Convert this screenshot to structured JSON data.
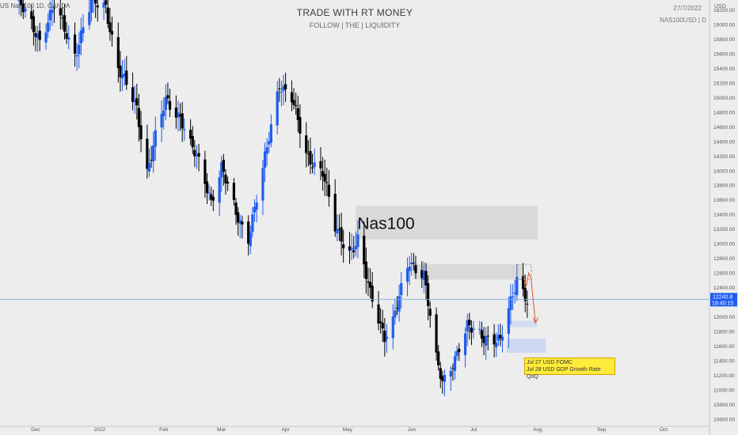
{
  "header": {
    "title": "TRADE WITH RT MONEY",
    "subtitle": "FOLLOW  | THE |  LIQUIDITY",
    "date": "27/7/2022",
    "symbol": "NAS100USD  |  D",
    "currency": "USD",
    "legend": "US Nas 100 1D, OANDA"
  },
  "price_tag": {
    "value": "12240.8",
    "countdown": "19:40:15"
  },
  "zone_label": "Nas100",
  "events": [
    "Jul 27  USD  FOMC",
    "Jul 28  USD GDP Growth Rate QoQ"
  ],
  "colors": {
    "bull": "#1e5cf0",
    "bear": "#000000",
    "zone": "#d6d6d6",
    "blue_zone": "#c9d6f2",
    "price_line": "#7fb2e5",
    "tag": "#1e5cf0",
    "arrow": "#e2552c"
  },
  "chart_data": {
    "type": "candlestick",
    "ylim": [
      10515,
      16290
    ],
    "y_ticks": [
      10600,
      10800,
      11000,
      11200,
      11400,
      11600,
      11800,
      12000,
      12200,
      12400,
      12600,
      12800,
      13000,
      13200,
      13400,
      13600,
      13800,
      14000,
      14200,
      14400,
      14600,
      14800,
      15000,
      15200,
      15400,
      15600,
      15800,
      16000,
      16200
    ],
    "x_labels": [
      {
        "label": "Dec",
        "date": "2021-12-01"
      },
      {
        "label": "2022",
        "date": "2022-01-01"
      },
      {
        "label": "Feb",
        "date": "2022-02-01"
      },
      {
        "label": "Mar",
        "date": "2022-03-01"
      },
      {
        "label": "Apr",
        "date": "2022-04-01"
      },
      {
        "label": "May",
        "date": "2022-05-01"
      },
      {
        "label": "Jun",
        "date": "2022-06-01"
      },
      {
        "label": "Jul",
        "date": "2022-07-01"
      },
      {
        "label": "Aug",
        "date": "2022-08-01"
      },
      {
        "label": "Sep",
        "date": "2022-09-01"
      },
      {
        "label": "Oct",
        "date": "2022-10-01"
      }
    ],
    "path": [
      [
        "2021-11-23",
        16290
      ],
      [
        "2021-12-03",
        15800
      ],
      [
        "2021-12-10",
        16250
      ],
      [
        "2021-12-20",
        15600
      ],
      [
        "2021-12-28",
        16300
      ],
      [
        "2022-01-04",
        16250
      ],
      [
        "2022-01-10",
        15400
      ],
      [
        "2022-01-19",
        14850
      ],
      [
        "2022-01-24",
        14000
      ],
      [
        "2022-01-28",
        14450
      ],
      [
        "2022-02-02",
        14950
      ],
      [
        "2022-02-09",
        14750
      ],
      [
        "2022-02-14",
        14350
      ],
      [
        "2022-02-18",
        14100
      ],
      [
        "2022-02-24",
        13600
      ],
      [
        "2022-03-01",
        14050
      ],
      [
        "2022-03-08",
        13400
      ],
      [
        "2022-03-14",
        13100
      ],
      [
        "2022-03-21",
        14000
      ],
      [
        "2022-03-29",
        15200
      ],
      [
        "2022-04-04",
        15000
      ],
      [
        "2022-04-11",
        14200
      ],
      [
        "2022-04-19",
        14000
      ],
      [
        "2022-04-25",
        13200
      ],
      [
        "2022-05-02",
        12900
      ],
      [
        "2022-05-06",
        13050
      ],
      [
        "2022-05-12",
        12300
      ],
      [
        "2022-05-19",
        11750
      ],
      [
        "2022-05-23",
        11950
      ],
      [
        "2022-05-31",
        12750
      ],
      [
        "2022-06-07",
        12600
      ],
      [
        "2022-06-13",
        11400
      ],
      [
        "2022-06-16",
        11100
      ],
      [
        "2022-06-22",
        11450
      ],
      [
        "2022-06-28",
        11850
      ],
      [
        "2022-07-05",
        11750
      ],
      [
        "2022-07-11",
        11700
      ],
      [
        "2022-07-14",
        11650
      ],
      [
        "2022-07-20",
        12300
      ],
      [
        "2022-07-22",
        12550
      ],
      [
        "2022-07-27",
        12240
      ]
    ],
    "zones": [
      {
        "label": "Nas100",
        "from": "2022-05-05",
        "to": "2022-08-01",
        "y0": 13060,
        "y1": 13520
      },
      {
        "from": "2022-06-02",
        "to": "2022-07-25",
        "y0": 12510,
        "y1": 12720
      },
      {
        "from": "2022-07-17",
        "to": "2022-08-01",
        "y0": 11860,
        "y1": 11950
      },
      {
        "from": "2022-07-17",
        "to": "2022-08-05",
        "y0": 11510,
        "y1": 11700
      }
    ],
    "current_price": 12240.8
  }
}
